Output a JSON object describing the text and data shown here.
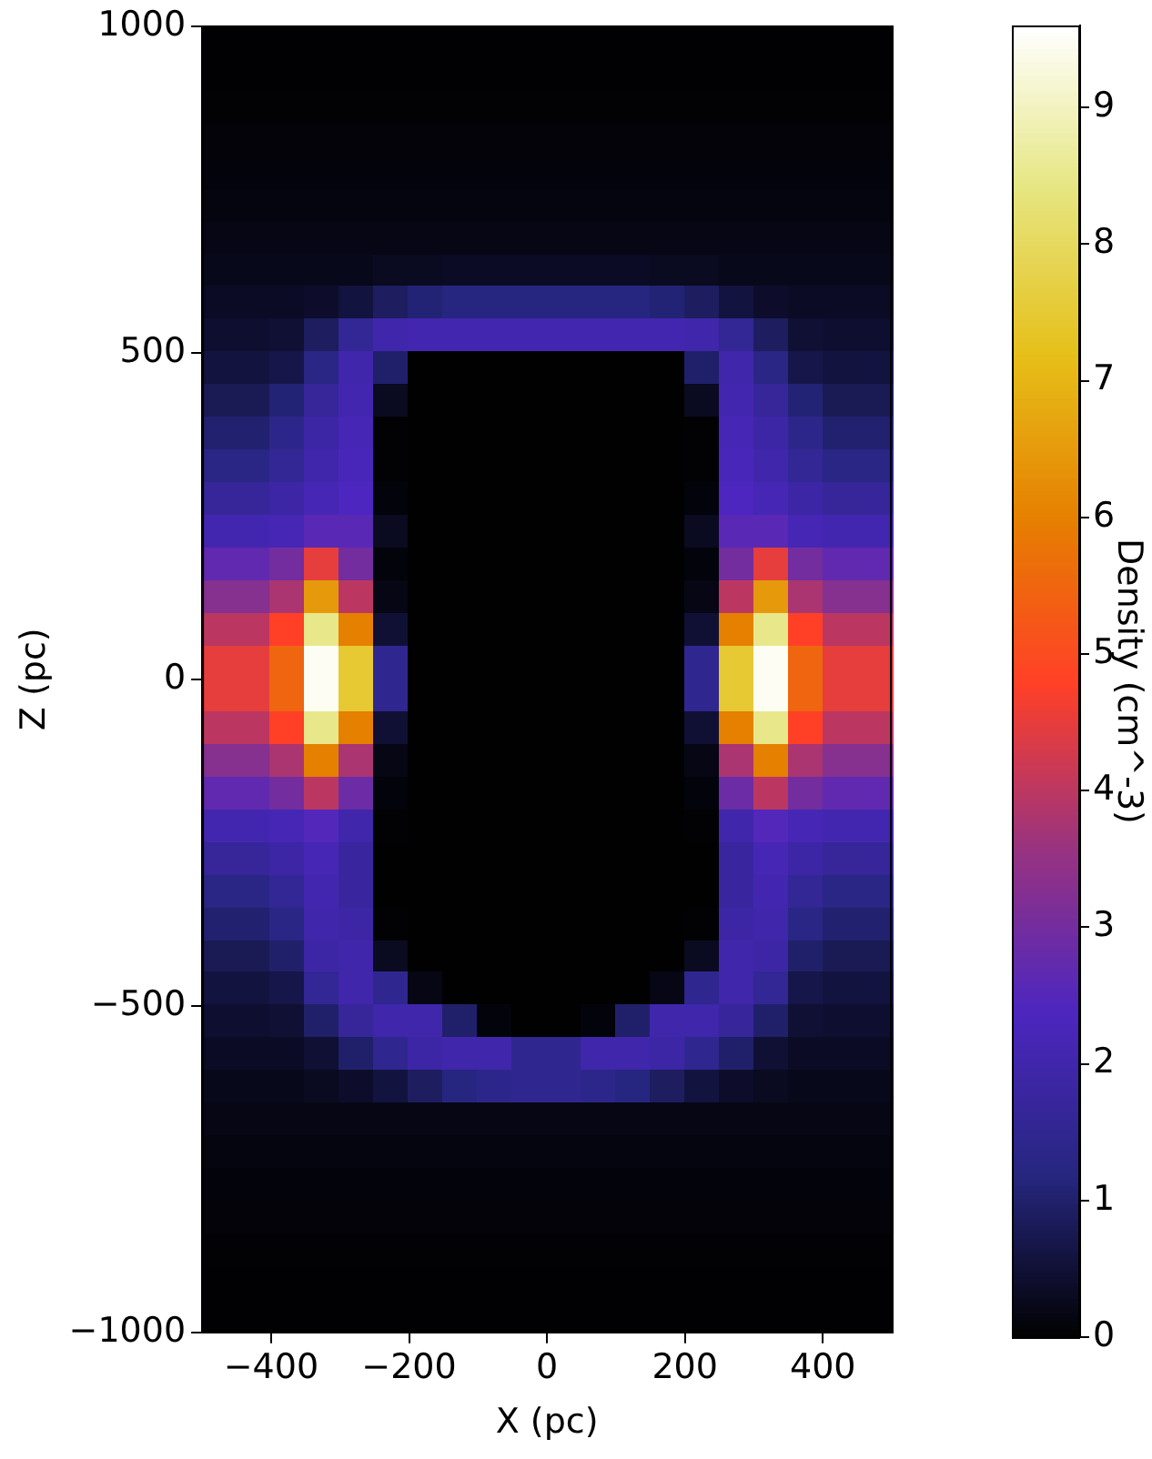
{
  "chart_data": {
    "type": "heatmap",
    "xlabel": "X (pc)",
    "ylabel": "Z (pc)",
    "clabel": "Density (cm^-3)",
    "xlim": [
      -500,
      500
    ],
    "ylim": [
      -1000,
      1000
    ],
    "xticks": [
      {
        "value": -400,
        "label": "−400"
      },
      {
        "value": -200,
        "label": "−200"
      },
      0,
      200,
      400
    ],
    "yticks": [
      {
        "value": -1000,
        "label": "−1000"
      },
      {
        "value": -500,
        "label": "−500"
      },
      0,
      500,
      1000
    ],
    "clim": [
      0,
      9.6
    ],
    "cticks": [
      0,
      1,
      2,
      3,
      4,
      5,
      6,
      7,
      8,
      9
    ],
    "cells": [
      [
        0.03,
        0.03,
        0.03,
        0.03,
        0.03,
        0.03,
        0.03,
        0.03,
        0.03,
        0.03,
        0.03,
        0.03,
        0.03,
        0.03,
        0.03,
        0.03,
        0.03,
        0.03,
        0.03,
        0.03
      ],
      [
        0.04,
        0.04,
        0.04,
        0.04,
        0.04,
        0.04,
        0.04,
        0.04,
        0.04,
        0.04,
        0.04,
        0.04,
        0.04,
        0.04,
        0.04,
        0.04,
        0.04,
        0.04,
        0.04,
        0.04
      ],
      [
        0.05,
        0.05,
        0.05,
        0.05,
        0.05,
        0.05,
        0.05,
        0.05,
        0.05,
        0.05,
        0.05,
        0.05,
        0.05,
        0.05,
        0.05,
        0.05,
        0.05,
        0.05,
        0.05,
        0.05
      ],
      [
        0.08,
        0.08,
        0.08,
        0.08,
        0.08,
        0.08,
        0.08,
        0.08,
        0.08,
        0.08,
        0.08,
        0.08,
        0.08,
        0.08,
        0.08,
        0.08,
        0.08,
        0.08,
        0.08,
        0.08
      ],
      [
        0.1,
        0.1,
        0.1,
        0.1,
        0.1,
        0.1,
        0.1,
        0.1,
        0.1,
        0.1,
        0.1,
        0.1,
        0.1,
        0.1,
        0.1,
        0.1,
        0.1,
        0.1,
        0.1,
        0.1
      ],
      [
        0.15,
        0.15,
        0.15,
        0.15,
        0.15,
        0.15,
        0.15,
        0.15,
        0.15,
        0.15,
        0.15,
        0.15,
        0.15,
        0.15,
        0.15,
        0.15,
        0.15,
        0.15,
        0.15,
        0.15
      ],
      [
        0.2,
        0.2,
        0.2,
        0.2,
        0.2,
        0.2,
        0.2,
        0.2,
        0.2,
        0.2,
        0.2,
        0.2,
        0.2,
        0.2,
        0.2,
        0.2,
        0.2,
        0.2,
        0.2,
        0.2
      ],
      [
        0.25,
        0.25,
        0.25,
        0.25,
        0.25,
        0.3,
        0.3,
        0.35,
        0.35,
        0.35,
        0.35,
        0.35,
        0.35,
        0.3,
        0.3,
        0.25,
        0.25,
        0.25,
        0.25,
        0.25
      ],
      [
        0.35,
        0.35,
        0.35,
        0.4,
        0.6,
        0.9,
        1.1,
        1.2,
        1.2,
        1.2,
        1.2,
        1.2,
        1.2,
        1.1,
        0.9,
        0.6,
        0.4,
        0.35,
        0.35,
        0.35
      ],
      [
        0.45,
        0.45,
        0.5,
        0.9,
        1.6,
        2,
        2.1,
        2.1,
        2.1,
        2.1,
        2.1,
        2.1,
        2.1,
        2.1,
        2,
        1.6,
        0.9,
        0.5,
        0.45,
        0.45
      ],
      [
        0.6,
        0.6,
        0.7,
        1.3,
        2,
        1,
        0.02,
        0.02,
        0.02,
        0.02,
        0.02,
        0.02,
        0.02,
        0.02,
        1,
        2,
        1.3,
        0.7,
        0.6,
        0.6
      ],
      [
        0.8,
        0.8,
        1.1,
        1.7,
        2.1,
        0.3,
        0.02,
        0.02,
        0.02,
        0.02,
        0.02,
        0.02,
        0.02,
        0.02,
        0.3,
        2.1,
        1.7,
        1.1,
        0.8,
        0.8
      ],
      [
        1.05,
        1.05,
        1.4,
        1.9,
        2.2,
        0.05,
        0.02,
        0.02,
        0.02,
        0.02,
        0.02,
        0.02,
        0.02,
        0.02,
        0.05,
        2.2,
        1.9,
        1.4,
        1.05,
        1.05
      ],
      [
        1.3,
        1.3,
        1.6,
        2,
        2.3,
        0.05,
        0.02,
        0.02,
        0.02,
        0.02,
        0.02,
        0.02,
        0.02,
        0.02,
        0.05,
        2.3,
        2,
        1.6,
        1.3,
        1.3
      ],
      [
        1.7,
        1.7,
        1.9,
        2.2,
        2.4,
        0.1,
        0.02,
        0.02,
        0.02,
        0.02,
        0.02,
        0.02,
        0.02,
        0.02,
        0.1,
        2.4,
        2.2,
        1.9,
        1.7,
        1.7
      ],
      [
        2.1,
        2.1,
        2.2,
        2.6,
        2.6,
        0.3,
        0.02,
        0.02,
        0.02,
        0.02,
        0.02,
        0.02,
        0.02,
        0.02,
        0.3,
        2.6,
        2.6,
        2.2,
        2.1,
        2.1
      ],
      [
        2.7,
        2.7,
        3,
        4.5,
        3,
        0.1,
        0.02,
        0.02,
        0.02,
        0.02,
        0.02,
        0.02,
        0.02,
        0.02,
        0.1,
        3,
        4.5,
        3,
        2.7,
        2.7
      ],
      [
        3.3,
        3.3,
        3.8,
        6.5,
        4,
        0.2,
        0.02,
        0.02,
        0.02,
        0.02,
        0.02,
        0.02,
        0.02,
        0.02,
        0.2,
        4,
        6.5,
        3.8,
        3.3,
        3.3
      ],
      [
        4,
        4,
        4.8,
        8.5,
        6,
        0.5,
        0.02,
        0.02,
        0.02,
        0.02,
        0.02,
        0.02,
        0.02,
        0.02,
        0.5,
        6,
        8.5,
        4.8,
        4,
        4
      ],
      [
        4.5,
        4.5,
        5.5,
        9.5,
        7.5,
        1.5,
        0.02,
        0.02,
        0.02,
        0.02,
        0.02,
        0.02,
        0.02,
        0.02,
        1.5,
        7.5,
        9.5,
        5.5,
        4.5,
        4.5
      ],
      [
        4.5,
        4.5,
        5.5,
        9.5,
        7.5,
        1.5,
        0.02,
        0.02,
        0.02,
        0.02,
        0.02,
        0.02,
        0.02,
        0.02,
        1.5,
        7.5,
        9.5,
        5.5,
        4.5,
        4.5
      ],
      [
        4,
        4,
        4.8,
        8.5,
        6,
        0.5,
        0.02,
        0.02,
        0.02,
        0.02,
        0.02,
        0.02,
        0.02,
        0.02,
        0.5,
        6,
        8.5,
        4.8,
        4,
        4
      ],
      [
        3.3,
        3.3,
        3.8,
        6,
        3.8,
        0.2,
        0.02,
        0.02,
        0.02,
        0.02,
        0.02,
        0.02,
        0.02,
        0.02,
        0.2,
        3.8,
        6,
        3.8,
        3.3,
        3.3
      ],
      [
        2.7,
        2.7,
        3,
        4,
        2.9,
        0.1,
        0.02,
        0.02,
        0.02,
        0.02,
        0.02,
        0.02,
        0.02,
        0.02,
        0.1,
        2.9,
        4,
        3,
        2.7,
        2.7
      ],
      [
        2.1,
        2.1,
        2.2,
        2.5,
        2,
        0.05,
        0.02,
        0.02,
        0.02,
        0.02,
        0.02,
        0.02,
        0.02,
        0.02,
        0.05,
        2,
        2.5,
        2.2,
        2.1,
        2.1
      ],
      [
        1.7,
        1.7,
        1.9,
        2.2,
        1.8,
        0.02,
        0.02,
        0.02,
        0.02,
        0.02,
        0.02,
        0.02,
        0.02,
        0.02,
        0.02,
        1.8,
        2.2,
        1.9,
        1.7,
        1.7
      ],
      [
        1.3,
        1.3,
        1.6,
        2.1,
        1.8,
        0.02,
        0.02,
        0.02,
        0.02,
        0.02,
        0.02,
        0.02,
        0.02,
        0.02,
        0.02,
        1.8,
        2.1,
        1.6,
        1.3,
        1.3
      ],
      [
        1.05,
        1.05,
        1.3,
        2,
        1.9,
        0.05,
        0.02,
        0.02,
        0.02,
        0.02,
        0.02,
        0.02,
        0.02,
        0.02,
        0.05,
        1.9,
        2,
        1.3,
        1.05,
        1.05
      ],
      [
        0.8,
        0.8,
        1,
        1.9,
        2,
        0.3,
        0.02,
        0.02,
        0.02,
        0.02,
        0.02,
        0.02,
        0.02,
        0.02,
        0.3,
        2,
        1.9,
        1,
        0.8,
        0.8
      ],
      [
        0.6,
        0.6,
        0.7,
        1.6,
        2,
        1.5,
        0.2,
        0.02,
        0.02,
        0.02,
        0.02,
        0.02,
        0.02,
        0.2,
        1.5,
        2,
        1.6,
        0.7,
        0.6,
        0.6
      ],
      [
        0.45,
        0.45,
        0.5,
        1,
        1.7,
        2,
        2,
        1,
        0.1,
        0.02,
        0.02,
        0.1,
        1,
        2,
        2,
        1.7,
        1,
        0.5,
        0.45,
        0.45
      ],
      [
        0.35,
        0.35,
        0.35,
        0.5,
        1,
        1.5,
        1.9,
        2,
        2,
        1.5,
        1.5,
        2,
        2,
        1.9,
        1.5,
        1,
        0.5,
        0.35,
        0.35,
        0.35
      ],
      [
        0.25,
        0.25,
        0.25,
        0.3,
        0.4,
        0.6,
        0.9,
        1.2,
        1.4,
        1.5,
        1.5,
        1.4,
        1.2,
        0.9,
        0.6,
        0.4,
        0.3,
        0.25,
        0.25,
        0.25
      ],
      [
        0.2,
        0.2,
        0.2,
        0.2,
        0.2,
        0.2,
        0.2,
        0.2,
        0.2,
        0.2,
        0.2,
        0.2,
        0.2,
        0.2,
        0.2,
        0.2,
        0.2,
        0.2,
        0.2,
        0.2
      ],
      [
        0.15,
        0.15,
        0.15,
        0.15,
        0.15,
        0.15,
        0.15,
        0.15,
        0.15,
        0.15,
        0.15,
        0.15,
        0.15,
        0.15,
        0.15,
        0.15,
        0.15,
        0.15,
        0.15,
        0.15
      ],
      [
        0.1,
        0.1,
        0.1,
        0.1,
        0.1,
        0.1,
        0.1,
        0.1,
        0.1,
        0.1,
        0.1,
        0.1,
        0.1,
        0.1,
        0.1,
        0.1,
        0.1,
        0.1,
        0.1,
        0.1
      ],
      [
        0.08,
        0.08,
        0.08,
        0.08,
        0.08,
        0.08,
        0.08,
        0.08,
        0.08,
        0.08,
        0.08,
        0.08,
        0.08,
        0.08,
        0.08,
        0.08,
        0.08,
        0.08,
        0.08,
        0.08
      ],
      [
        0.05,
        0.05,
        0.05,
        0.05,
        0.05,
        0.05,
        0.05,
        0.05,
        0.05,
        0.05,
        0.05,
        0.05,
        0.05,
        0.05,
        0.05,
        0.05,
        0.05,
        0.05,
        0.05,
        0.05
      ],
      [
        0.04,
        0.04,
        0.04,
        0.04,
        0.04,
        0.04,
        0.04,
        0.04,
        0.04,
        0.04,
        0.04,
        0.04,
        0.04,
        0.04,
        0.04,
        0.04,
        0.04,
        0.04,
        0.04,
        0.04
      ],
      [
        0.03,
        0.03,
        0.03,
        0.03,
        0.03,
        0.03,
        0.03,
        0.03,
        0.03,
        0.03,
        0.03,
        0.03,
        0.03,
        0.03,
        0.03,
        0.03,
        0.03,
        0.03,
        0.03,
        0.03
      ]
    ]
  }
}
